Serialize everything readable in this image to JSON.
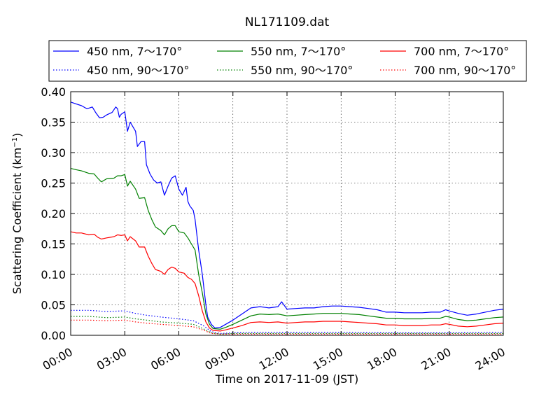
{
  "chart_data": {
    "type": "line",
    "title": "NL171109.dat",
    "xlabel": "Time on 2017-11-09 (JST)",
    "ylabel_main": "Scattering Coefficient (km",
    "ylabel_sup": "−1",
    "ylabel_close": ")",
    "xlim_hours": [
      0,
      24
    ],
    "ylim": [
      0,
      0.4
    ],
    "grid": true,
    "legend_position": "top",
    "x_ticks": [
      {
        "h": 0,
        "label": "00:00"
      },
      {
        "h": 3,
        "label": "03:00"
      },
      {
        "h": 6,
        "label": "06:00"
      },
      {
        "h": 9,
        "label": "09:00"
      },
      {
        "h": 12,
        "label": "12:00"
      },
      {
        "h": 15,
        "label": "15:00"
      },
      {
        "h": 18,
        "label": "18:00"
      },
      {
        "h": 21,
        "label": "21:00"
      },
      {
        "h": 24,
        "label": "24:00"
      }
    ],
    "y_ticks": [
      {
        "v": 0.0,
        "label": "0.00"
      },
      {
        "v": 0.05,
        "label": "0.05"
      },
      {
        "v": 0.1,
        "label": "0.10"
      },
      {
        "v": 0.15,
        "label": "0.15"
      },
      {
        "v": 0.2,
        "label": "0.20"
      },
      {
        "v": 0.25,
        "label": "0.25"
      },
      {
        "v": 0.3,
        "label": "0.30"
      },
      {
        "v": 0.35,
        "label": "0.35"
      },
      {
        "v": 0.4,
        "label": "0.40"
      }
    ],
    "series": [
      {
        "name": "450 nm, 7～170°",
        "color": "#0000ff",
        "style": "solid",
        "points": [
          [
            0,
            0.383
          ],
          [
            0.3,
            0.38
          ],
          [
            0.6,
            0.377
          ],
          [
            0.9,
            0.372
          ],
          [
            1.2,
            0.375
          ],
          [
            1.4,
            0.365
          ],
          [
            1.6,
            0.357
          ],
          [
            1.8,
            0.358
          ],
          [
            2.0,
            0.362
          ],
          [
            2.3,
            0.366
          ],
          [
            2.5,
            0.375
          ],
          [
            2.6,
            0.372
          ],
          [
            2.7,
            0.358
          ],
          [
            2.8,
            0.363
          ],
          [
            3.0,
            0.367
          ],
          [
            3.15,
            0.335
          ],
          [
            3.3,
            0.35
          ],
          [
            3.4,
            0.345
          ],
          [
            3.6,
            0.335
          ],
          [
            3.7,
            0.31
          ],
          [
            3.9,
            0.318
          ],
          [
            4.1,
            0.318
          ],
          [
            4.2,
            0.28
          ],
          [
            4.4,
            0.265
          ],
          [
            4.6,
            0.255
          ],
          [
            4.8,
            0.25
          ],
          [
            5.0,
            0.252
          ],
          [
            5.2,
            0.23
          ],
          [
            5.4,
            0.245
          ],
          [
            5.6,
            0.258
          ],
          [
            5.8,
            0.262
          ],
          [
            6.0,
            0.24
          ],
          [
            6.2,
            0.23
          ],
          [
            6.4,
            0.243
          ],
          [
            6.5,
            0.22
          ],
          [
            6.6,
            0.213
          ],
          [
            6.8,
            0.205
          ],
          [
            6.9,
            0.19
          ],
          [
            7.1,
            0.14
          ],
          [
            7.3,
            0.1
          ],
          [
            7.5,
            0.05
          ],
          [
            7.6,
            0.03
          ],
          [
            7.8,
            0.018
          ],
          [
            8.0,
            0.012
          ],
          [
            8.3,
            0.013
          ],
          [
            8.6,
            0.018
          ],
          [
            9.0,
            0.025
          ],
          [
            9.5,
            0.035
          ],
          [
            10.0,
            0.045
          ],
          [
            10.5,
            0.047
          ],
          [
            11.0,
            0.045
          ],
          [
            11.5,
            0.047
          ],
          [
            11.7,
            0.055
          ],
          [
            12.0,
            0.043
          ],
          [
            12.5,
            0.044
          ],
          [
            13.0,
            0.045
          ],
          [
            13.5,
            0.045
          ],
          [
            14.0,
            0.047
          ],
          [
            14.5,
            0.048
          ],
          [
            15.0,
            0.048
          ],
          [
            15.5,
            0.047
          ],
          [
            16.0,
            0.046
          ],
          [
            16.5,
            0.044
          ],
          [
            17.0,
            0.042
          ],
          [
            17.5,
            0.038
          ],
          [
            18.0,
            0.038
          ],
          [
            18.5,
            0.037
          ],
          [
            19.0,
            0.037
          ],
          [
            19.5,
            0.037
          ],
          [
            20.0,
            0.038
          ],
          [
            20.5,
            0.038
          ],
          [
            20.8,
            0.042
          ],
          [
            21.0,
            0.04
          ],
          [
            21.5,
            0.036
          ],
          [
            22.0,
            0.033
          ],
          [
            22.5,
            0.035
          ],
          [
            23.0,
            0.038
          ],
          [
            23.5,
            0.041
          ],
          [
            24.0,
            0.043
          ]
        ]
      },
      {
        "name": "450 nm, 90～170°",
        "color": "#0000ff",
        "style": "dotted",
        "points": [
          [
            0,
            0.041
          ],
          [
            1.0,
            0.041
          ],
          [
            2.0,
            0.039
          ],
          [
            2.8,
            0.04
          ],
          [
            3.0,
            0.04
          ],
          [
            3.6,
            0.036
          ],
          [
            4.2,
            0.033
          ],
          [
            5.0,
            0.03
          ],
          [
            6.0,
            0.027
          ],
          [
            6.8,
            0.024
          ],
          [
            7.4,
            0.015
          ],
          [
            7.8,
            0.006
          ],
          [
            8.3,
            0.003
          ],
          [
            9.0,
            0.004
          ],
          [
            10.0,
            0.005
          ],
          [
            12.0,
            0.005
          ],
          [
            15.0,
            0.005
          ],
          [
            18.0,
            0.004
          ],
          [
            21.0,
            0.004
          ],
          [
            24.0,
            0.005
          ]
        ]
      },
      {
        "name": "550 nm, 7～170°",
        "color": "#008000",
        "style": "solid",
        "points": [
          [
            0,
            0.274
          ],
          [
            0.3,
            0.272
          ],
          [
            0.6,
            0.27
          ],
          [
            1.0,
            0.266
          ],
          [
            1.3,
            0.265
          ],
          [
            1.5,
            0.258
          ],
          [
            1.7,
            0.252
          ],
          [
            2.0,
            0.257
          ],
          [
            2.4,
            0.258
          ],
          [
            2.6,
            0.262
          ],
          [
            2.8,
            0.262
          ],
          [
            3.0,
            0.264
          ],
          [
            3.15,
            0.245
          ],
          [
            3.3,
            0.253
          ],
          [
            3.6,
            0.24
          ],
          [
            3.8,
            0.225
          ],
          [
            4.1,
            0.226
          ],
          [
            4.3,
            0.205
          ],
          [
            4.5,
            0.19
          ],
          [
            4.7,
            0.178
          ],
          [
            5.0,
            0.172
          ],
          [
            5.2,
            0.165
          ],
          [
            5.4,
            0.175
          ],
          [
            5.6,
            0.18
          ],
          [
            5.8,
            0.18
          ],
          [
            6.0,
            0.17
          ],
          [
            6.3,
            0.168
          ],
          [
            6.5,
            0.16
          ],
          [
            6.7,
            0.15
          ],
          [
            6.9,
            0.14
          ],
          [
            7.1,
            0.1
          ],
          [
            7.3,
            0.07
          ],
          [
            7.5,
            0.035
          ],
          [
            7.7,
            0.018
          ],
          [
            7.9,
            0.011
          ],
          [
            8.3,
            0.01
          ],
          [
            8.6,
            0.013
          ],
          [
            9.0,
            0.018
          ],
          [
            9.5,
            0.025
          ],
          [
            10.0,
            0.032
          ],
          [
            10.5,
            0.035
          ],
          [
            11.0,
            0.034
          ],
          [
            11.5,
            0.035
          ],
          [
            12.0,
            0.032
          ],
          [
            12.5,
            0.033
          ],
          [
            13.0,
            0.034
          ],
          [
            13.5,
            0.035
          ],
          [
            14.0,
            0.036
          ],
          [
            14.5,
            0.036
          ],
          [
            15.0,
            0.036
          ],
          [
            15.5,
            0.035
          ],
          [
            16.0,
            0.034
          ],
          [
            16.5,
            0.032
          ],
          [
            17.0,
            0.03
          ],
          [
            17.5,
            0.028
          ],
          [
            18.0,
            0.028
          ],
          [
            18.5,
            0.027
          ],
          [
            19.0,
            0.027
          ],
          [
            19.5,
            0.027
          ],
          [
            20.0,
            0.028
          ],
          [
            20.5,
            0.028
          ],
          [
            20.8,
            0.031
          ],
          [
            21.0,
            0.03
          ],
          [
            21.5,
            0.026
          ],
          [
            22.0,
            0.024
          ],
          [
            22.5,
            0.025
          ],
          [
            23.0,
            0.027
          ],
          [
            23.5,
            0.029
          ],
          [
            24.0,
            0.03
          ]
        ]
      },
      {
        "name": "550 nm, 90～170°",
        "color": "#008000",
        "style": "dotted",
        "points": [
          [
            0,
            0.031
          ],
          [
            1.0,
            0.031
          ],
          [
            2.0,
            0.029
          ],
          [
            3.0,
            0.03
          ],
          [
            3.6,
            0.027
          ],
          [
            4.2,
            0.025
          ],
          [
            5.0,
            0.022
          ],
          [
            6.0,
            0.02
          ],
          [
            6.8,
            0.018
          ],
          [
            7.4,
            0.01
          ],
          [
            7.8,
            0.004
          ],
          [
            8.3,
            0.002
          ],
          [
            9.0,
            0.003
          ],
          [
            12.0,
            0.003
          ],
          [
            15.0,
            0.003
          ],
          [
            18.0,
            0.003
          ],
          [
            21.0,
            0.003
          ],
          [
            24.0,
            0.003
          ]
        ]
      },
      {
        "name": "700 nm, 7～170°",
        "color": "#ff0000",
        "style": "solid",
        "points": [
          [
            0,
            0.17
          ],
          [
            0.3,
            0.168
          ],
          [
            0.6,
            0.168
          ],
          [
            1.0,
            0.165
          ],
          [
            1.3,
            0.166
          ],
          [
            1.5,
            0.161
          ],
          [
            1.7,
            0.158
          ],
          [
            2.0,
            0.16
          ],
          [
            2.4,
            0.162
          ],
          [
            2.6,
            0.165
          ],
          [
            2.8,
            0.164
          ],
          [
            3.0,
            0.165
          ],
          [
            3.15,
            0.155
          ],
          [
            3.3,
            0.162
          ],
          [
            3.6,
            0.155
          ],
          [
            3.8,
            0.145
          ],
          [
            4.1,
            0.145
          ],
          [
            4.3,
            0.13
          ],
          [
            4.5,
            0.118
          ],
          [
            4.7,
            0.108
          ],
          [
            5.0,
            0.105
          ],
          [
            5.2,
            0.1
          ],
          [
            5.4,
            0.108
          ],
          [
            5.6,
            0.112
          ],
          [
            5.8,
            0.11
          ],
          [
            6.0,
            0.104
          ],
          [
            6.3,
            0.102
          ],
          [
            6.5,
            0.095
          ],
          [
            6.7,
            0.092
          ],
          [
            6.9,
            0.085
          ],
          [
            7.1,
            0.065
          ],
          [
            7.3,
            0.04
          ],
          [
            7.5,
            0.022
          ],
          [
            7.7,
            0.012
          ],
          [
            7.9,
            0.008
          ],
          [
            8.3,
            0.007
          ],
          [
            8.6,
            0.009
          ],
          [
            9.0,
            0.012
          ],
          [
            9.5,
            0.016
          ],
          [
            10.0,
            0.021
          ],
          [
            10.5,
            0.022
          ],
          [
            11.0,
            0.021
          ],
          [
            11.5,
            0.022
          ],
          [
            12.0,
            0.02
          ],
          [
            12.5,
            0.021
          ],
          [
            13.0,
            0.022
          ],
          [
            13.5,
            0.022
          ],
          [
            14.0,
            0.023
          ],
          [
            14.5,
            0.023
          ],
          [
            15.0,
            0.023
          ],
          [
            15.5,
            0.022
          ],
          [
            16.0,
            0.021
          ],
          [
            16.5,
            0.02
          ],
          [
            17.0,
            0.019
          ],
          [
            17.5,
            0.017
          ],
          [
            18.0,
            0.017
          ],
          [
            18.5,
            0.016
          ],
          [
            19.0,
            0.016
          ],
          [
            19.5,
            0.016
          ],
          [
            20.0,
            0.017
          ],
          [
            20.5,
            0.017
          ],
          [
            20.8,
            0.019
          ],
          [
            21.0,
            0.018
          ],
          [
            21.5,
            0.015
          ],
          [
            22.0,
            0.014
          ],
          [
            22.5,
            0.015
          ],
          [
            23.0,
            0.017
          ],
          [
            23.5,
            0.019
          ],
          [
            24.0,
            0.02
          ]
        ]
      },
      {
        "name": "700 nm, 90～170°",
        "color": "#ff0000",
        "style": "dotted",
        "points": [
          [
            0,
            0.025
          ],
          [
            1.0,
            0.025
          ],
          [
            2.0,
            0.024
          ],
          [
            3.0,
            0.025
          ],
          [
            3.6,
            0.022
          ],
          [
            4.2,
            0.02
          ],
          [
            5.0,
            0.018
          ],
          [
            6.0,
            0.016
          ],
          [
            6.8,
            0.014
          ],
          [
            7.4,
            0.008
          ],
          [
            7.8,
            0.003
          ],
          [
            8.3,
            0.002
          ],
          [
            9.0,
            0.002
          ],
          [
            12.0,
            0.002
          ],
          [
            15.0,
            0.002
          ],
          [
            18.0,
            0.002
          ],
          [
            21.0,
            0.002
          ],
          [
            24.0,
            0.002
          ]
        ]
      }
    ]
  }
}
